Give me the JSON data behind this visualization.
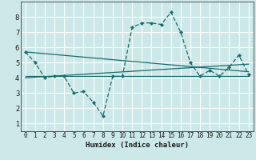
{
  "xlabel": "Humidex (Indice chaleur)",
  "x_ticks": [
    0,
    1,
    2,
    3,
    4,
    5,
    6,
    7,
    8,
    9,
    10,
    11,
    12,
    13,
    14,
    15,
    16,
    17,
    18,
    19,
    20,
    21,
    22,
    23
  ],
  "ylim": [
    0.5,
    9.0
  ],
  "xlim": [
    -0.5,
    23.5
  ],
  "yticks": [
    1,
    2,
    3,
    4,
    5,
    6,
    7,
    8
  ],
  "bg_color": "#cce8e8",
  "line_color": "#1a6b6b",
  "grid_color": "#ffffff",
  "line1_x": [
    0,
    1,
    2,
    3,
    4,
    5,
    6,
    7,
    8,
    9,
    10,
    11,
    12,
    13,
    14,
    15,
    16,
    17,
    18,
    19,
    20,
    21,
    22,
    23
  ],
  "line1_y": [
    5.7,
    5.0,
    4.0,
    4.1,
    4.1,
    3.0,
    3.1,
    2.4,
    1.5,
    4.1,
    4.1,
    7.3,
    7.6,
    7.6,
    7.5,
    8.3,
    7.0,
    5.0,
    4.1,
    4.5,
    4.1,
    4.7,
    5.5,
    4.2
  ],
  "line2_x": [
    0,
    23
  ],
  "line2_y": [
    4.1,
    4.1
  ],
  "line3_x": [
    0,
    23
  ],
  "line3_y": [
    5.7,
    4.4
  ],
  "line4_x": [
    0,
    23
  ],
  "line4_y": [
    4.0,
    4.9
  ],
  "tick_fontsize": 5.5,
  "xlabel_fontsize": 6.5
}
